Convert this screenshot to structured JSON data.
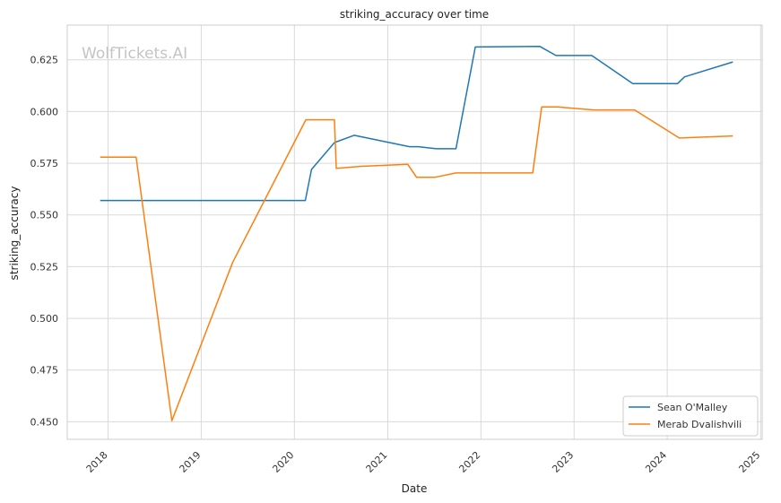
{
  "watermark": "WolfTickets.AI",
  "chart_data": {
    "type": "line",
    "title": "striking_accuracy over time",
    "xlabel": "Date",
    "ylabel": "striking_accuracy",
    "xlim": [
      "2017-07-25",
      "2025-01-07"
    ],
    "ylim": [
      0.4415,
      0.6418
    ],
    "x_ticks": [
      "2018",
      "2019",
      "2020",
      "2021",
      "2022",
      "2023",
      "2024",
      "2025"
    ],
    "y_ticks": [
      "0.450",
      "0.475",
      "0.500",
      "0.525",
      "0.550",
      "0.575",
      "0.600",
      "0.625"
    ],
    "grid": true,
    "legend_position": "lower-right",
    "colors": {
      "Sean O'Malley": "#1f77b4",
      "Merab Dvalishvili": "#ff7f0e"
    },
    "series": [
      {
        "name": "Sean O'Malley",
        "points": [
          [
            "2017-12-01",
            0.557
          ],
          [
            "2020-02-13",
            0.557
          ],
          [
            "2020-03-08",
            0.572
          ],
          [
            "2020-06-06",
            0.585
          ],
          [
            "2020-08-22",
            0.5885
          ],
          [
            "2021-03-27",
            0.583
          ],
          [
            "2021-05-01",
            0.583
          ],
          [
            "2021-07-10",
            0.582
          ],
          [
            "2021-09-25",
            0.582
          ],
          [
            "2021-12-10",
            0.6312
          ],
          [
            "2022-08-20",
            0.6315
          ],
          [
            "2022-10-22",
            0.6271
          ],
          [
            "2023-03-11",
            0.6271
          ],
          [
            "2023-08-19",
            0.6135
          ],
          [
            "2024-02-10",
            0.6135
          ],
          [
            "2024-03-09",
            0.6168
          ],
          [
            "2024-09-14",
            0.624
          ]
        ]
      },
      {
        "name": "Merab Dvalishvili",
        "points": [
          [
            "2017-12-01",
            0.578
          ],
          [
            "2018-04-21",
            0.578
          ],
          [
            "2018-09-08",
            0.4505
          ],
          [
            "2019-05-04",
            0.527
          ],
          [
            "2020-02-15",
            0.596
          ],
          [
            "2020-06-06",
            0.596
          ],
          [
            "2020-06-13",
            0.5725
          ],
          [
            "2020-09-19",
            0.5735
          ],
          [
            "2021-03-20",
            0.5745
          ],
          [
            "2021-04-24",
            0.5682
          ],
          [
            "2021-07-03",
            0.5682
          ],
          [
            "2021-09-25",
            0.5703
          ],
          [
            "2022-07-23",
            0.5703
          ],
          [
            "2022-08-27",
            0.6022
          ],
          [
            "2022-10-29",
            0.6022
          ],
          [
            "2023-03-18",
            0.6008
          ],
          [
            "2023-08-26",
            0.6008
          ],
          [
            "2024-02-17",
            0.5872
          ],
          [
            "2024-09-14",
            0.5882
          ]
        ]
      }
    ]
  }
}
